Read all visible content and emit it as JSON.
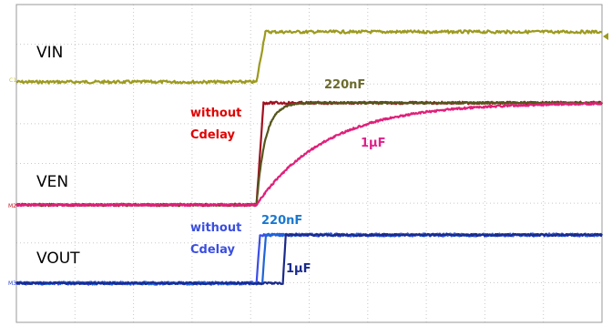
{
  "chart_data": {
    "type": "line",
    "title": "",
    "xlabel": "",
    "ylabel": "",
    "grid": true,
    "grid_divisions": {
      "x": 10,
      "y": 8
    },
    "channel_markers": [
      {
        "id": "c1",
        "text": "C1",
        "color": "#c8c33c"
      },
      {
        "id": "m2",
        "text": "M2",
        "color": "#c0141e"
      },
      {
        "id": "m3",
        "text": "M3",
        "color": "#2a44d8"
      }
    ],
    "signal_labels": [
      {
        "id": "vin",
        "text": "VIN"
      },
      {
        "id": "ven",
        "text": "VEN"
      },
      {
        "id": "vout",
        "text": "VOUT"
      }
    ],
    "annotations": [
      {
        "id": "a-220nf-ven",
        "text": "220nF",
        "color": "#6b6b2e"
      },
      {
        "id": "a-without-ven-1",
        "text": "without",
        "color": "#e00000"
      },
      {
        "id": "a-without-ven-2",
        "text": "Cdelay",
        "color": "#e00000"
      },
      {
        "id": "a-1uf-ven",
        "text": "1µF",
        "color": "#e0208a"
      },
      {
        "id": "a-without-vout-1",
        "text": "without",
        "color": "#3a4ee0"
      },
      {
        "id": "a-without-vout-2",
        "text": "Cdelay",
        "color": "#3a4ee0"
      },
      {
        "id": "a-220nf-vout",
        "text": "220nF",
        "color": "#1a78d0"
      },
      {
        "id": "a-1uf-vout",
        "text": "1µF",
        "color": "#1a2a8a"
      }
    ],
    "series": [
      {
        "id": "vin",
        "color": "#9c9a1e",
        "points": [
          [
            0,
            0
          ],
          [
            4.1,
            0
          ],
          [
            4.25,
            1.0
          ],
          [
            10,
            1.0
          ]
        ]
      },
      {
        "id": "ven-no-cdelay",
        "color": "#a01020",
        "points": [
          [
            0,
            0
          ],
          [
            4.1,
            0
          ],
          [
            4.22,
            1.0
          ],
          [
            10,
            1.0
          ]
        ]
      },
      {
        "id": "ven-220nf",
        "color": "#55551c",
        "tau": 0.15,
        "start": 4.1
      },
      {
        "id": "ven-1uf",
        "color": "#e0207a",
        "tau": 1.2,
        "start": 4.1
      },
      {
        "id": "vout-no-cdelay",
        "color": "#3a4ee8",
        "points": [
          [
            0,
            0
          ],
          [
            4.1,
            0
          ],
          [
            4.16,
            1.0
          ],
          [
            10,
            1.0
          ]
        ]
      },
      {
        "id": "vout-220nf",
        "color": "#1f64d8",
        "points": [
          [
            0,
            0
          ],
          [
            4.2,
            0
          ],
          [
            4.26,
            1.0
          ],
          [
            10,
            1.0
          ]
        ]
      },
      {
        "id": "vout-1uf",
        "color": "#1a2a8a",
        "points": [
          [
            0,
            0
          ],
          [
            4.55,
            0
          ],
          [
            4.6,
            1.0
          ],
          [
            10,
            1.0
          ]
        ]
      }
    ]
  }
}
